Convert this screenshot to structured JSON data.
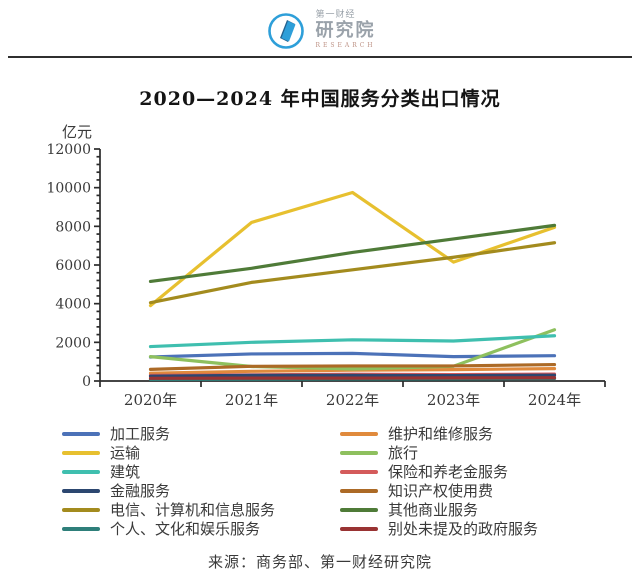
{
  "header": {
    "logo": {
      "brand_top": "第一财经",
      "brand_main": "研究院",
      "brand_sub": "RESEARCH",
      "accent_color": "#2E9FD9",
      "text_color": "#9AA2AA"
    }
  },
  "title": "2020—2024 年中国服务分类出口情况",
  "source": "来源：商务部、第一财经研究院",
  "chart_data": {
    "type": "line",
    "title": "2020—2024 年中国服务分类出口情况",
    "unit_label": "亿元",
    "xlabel": "",
    "ylabel": "亿元",
    "categories": [
      "2020年",
      "2021年",
      "2022年",
      "2023年",
      "2024年"
    ],
    "ylim": [
      0,
      12000
    ],
    "y_major_tick": 2000,
    "y_minor_tick": 400,
    "grid": false,
    "legend_position": "bottom-two-columns",
    "series": [
      {
        "name": "加工服务",
        "color": "#4C72B8",
        "values": [
          1240,
          1400,
          1430,
          1260,
          1310
        ]
      },
      {
        "name": "维护和维修服务",
        "color": "#E08A3C",
        "values": [
          400,
          500,
          560,
          590,
          640
        ]
      },
      {
        "name": "运输",
        "color": "#E7C02F",
        "values": [
          3900,
          8200,
          9750,
          6150,
          7950
        ]
      },
      {
        "name": "旅行",
        "color": "#8EC05E",
        "values": [
          1260,
          750,
          620,
          760,
          2650
        ]
      },
      {
        "name": "建筑",
        "color": "#3FBFAF",
        "values": [
          1780,
          2000,
          2130,
          2070,
          2340
        ]
      },
      {
        "name": "保险和养老金服务",
        "color": "#D45B5B",
        "values": [
          290,
          320,
          350,
          330,
          360
        ]
      },
      {
        "name": "金融服务",
        "color": "#2C4770",
        "values": [
          250,
          290,
          290,
          280,
          300
        ]
      },
      {
        "name": "知识产权使用费",
        "color": "#AC6A26",
        "values": [
          600,
          760,
          780,
          780,
          850
        ]
      },
      {
        "name": "电信、计算机和信息服务",
        "color": "#A38B1E",
        "values": [
          4050,
          5100,
          5750,
          6400,
          7150
        ]
      },
      {
        "name": "其他商业服务",
        "color": "#4F7B38",
        "values": [
          5150,
          5830,
          6650,
          7350,
          8050
        ]
      },
      {
        "name": "个人、文化和娱乐服务",
        "color": "#2E7F7A",
        "values": [
          80,
          90,
          100,
          110,
          130
        ]
      },
      {
        "name": "别处未提及的政府服务",
        "color": "#993333",
        "values": [
          140,
          150,
          150,
          160,
          170
        ]
      }
    ]
  }
}
